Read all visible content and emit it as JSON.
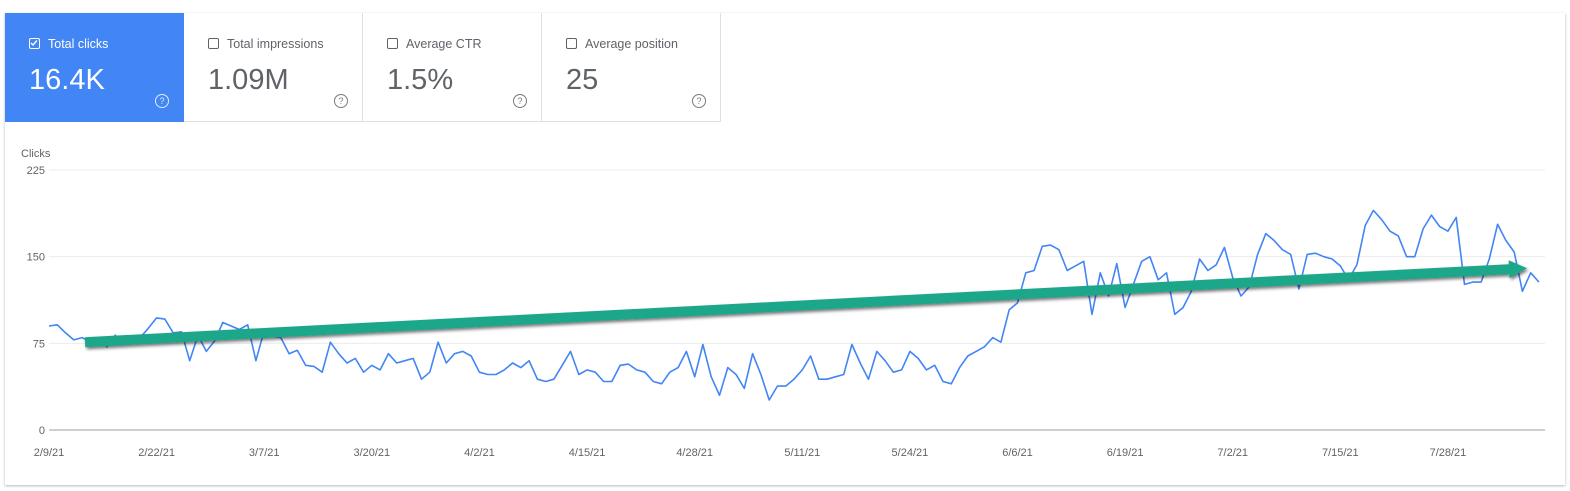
{
  "metrics": [
    {
      "label": "Total clicks",
      "value": "16.4K",
      "checked": true
    },
    {
      "label": "Total impressions",
      "value": "1.09M",
      "checked": false
    },
    {
      "label": "Average CTR",
      "value": "1.5%",
      "checked": false
    },
    {
      "label": "Average position",
      "value": "25",
      "checked": false
    }
  ],
  "colors": {
    "accent": "#4285f4",
    "line": "#4285f4",
    "arrow": "#1aa68a"
  },
  "chart_data": {
    "type": "line",
    "ylabel": "Clicks",
    "ylim": [
      0,
      225
    ],
    "yticks": [
      0,
      75,
      150,
      225
    ],
    "xticks": [
      "2/9/21",
      "2/22/21",
      "3/7/21",
      "3/20/21",
      "4/2/21",
      "4/15/21",
      "4/28/21",
      "5/11/21",
      "5/24/21",
      "6/6/21",
      "6/19/21",
      "7/2/21",
      "7/15/21",
      "7/28/21"
    ],
    "x_start": "2/9/21",
    "x_end": "8/9/21",
    "grid": true,
    "legend": "none",
    "series": [
      {
        "values": [
          90,
          91,
          84,
          78,
          80,
          76,
          80,
          72,
          82,
          74,
          75,
          80,
          88,
          97,
          96,
          84,
          85,
          60,
          82,
          68,
          77,
          93,
          90,
          87,
          91,
          60,
          86,
          81,
          80,
          66,
          69,
          56,
          55,
          50,
          76,
          66,
          58,
          62,
          50,
          56,
          52,
          66,
          58,
          60,
          62,
          44,
          50,
          76,
          58,
          66,
          68,
          64,
          50,
          48,
          48,
          52,
          58,
          54,
          60,
          44,
          42,
          44,
          56,
          68,
          48,
          52,
          50,
          42,
          42,
          56,
          57,
          52,
          50,
          42,
          40,
          50,
          54,
          68,
          46,
          74,
          46,
          30,
          54,
          48,
          36,
          66,
          48,
          26,
          38,
          38,
          44,
          52,
          64,
          44,
          44,
          46,
          48,
          74,
          58,
          44,
          68,
          60,
          50,
          52,
          68,
          62,
          52,
          56,
          42,
          40,
          54,
          64,
          68,
          72,
          80,
          76,
          104,
          110,
          136,
          138,
          159,
          160,
          156,
          138,
          142,
          146,
          100,
          136,
          116,
          144,
          106,
          126,
          146,
          150,
          130,
          136,
          100,
          106,
          120,
          148,
          138,
          143,
          158,
          132,
          116,
          124,
          152,
          170,
          164,
          156,
          152,
          122,
          152,
          153,
          150,
          148,
          142,
          130,
          143,
          177,
          190,
          182,
          172,
          168,
          150,
          150,
          174,
          186,
          176,
          172,
          184,
          126,
          128,
          128,
          148,
          178,
          164,
          154,
          120,
          136,
          128
        ]
      }
    ],
    "trend": {
      "from": 76,
      "to": 140
    }
  }
}
